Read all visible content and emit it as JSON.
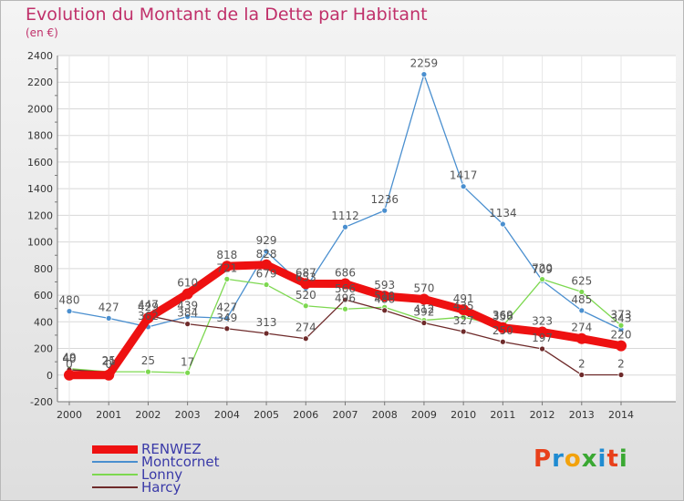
{
  "header": {
    "title": "Evolution du Montant de la Dette par Habitant",
    "subtitle": "(en €)"
  },
  "logo": {
    "text": "Proxiti",
    "colors": [
      "#e8401a",
      "#1f8bd1",
      "#f2a20d",
      "#3aa832",
      "#1f8bd1",
      "#e8401a",
      "#3aa832"
    ]
  },
  "chart_data": {
    "type": "line",
    "x": [
      "2000",
      "2001",
      "2002",
      "2003",
      "2004",
      "2005",
      "2006",
      "2007",
      "2008",
      "2009",
      "2010",
      "2011",
      "2012",
      "2013",
      "2014"
    ],
    "ylim": [
      -200,
      2400
    ],
    "yticks": [
      -200,
      0,
      200,
      400,
      600,
      800,
      1000,
      1200,
      1400,
      1600,
      1800,
      2000,
      2200,
      2400
    ],
    "grid": true,
    "legend_position": "bottom-left",
    "series": [
      {
        "name": "RENWEZ",
        "color": "#ee1111",
        "values": [
          0,
          0,
          429,
          610,
          818,
          828,
          687,
          686,
          593,
          570,
          491,
          356,
          323,
          274,
          220
        ]
      },
      {
        "name": "Montcornet",
        "color": "#4a8fcf",
        "values": [
          480,
          427,
          362,
          439,
          427,
          929,
          653,
          1112,
          1236,
          2259,
          1417,
          1134,
          709,
          485,
          343
        ]
      },
      {
        "name": "Lonny",
        "color": "#7dd850",
        "values": [
          49,
          25,
          25,
          17,
          721,
          679,
          520,
          496,
          510,
          412,
          435,
          369,
          720,
          625,
          373
        ]
      },
      {
        "name": "Harcy",
        "color": "#6e2a2a",
        "values": [
          40,
          21,
          447,
          384,
          349,
          313,
          274,
          566,
          486,
          392,
          327,
          250,
          197,
          2,
          2
        ]
      }
    ]
  }
}
